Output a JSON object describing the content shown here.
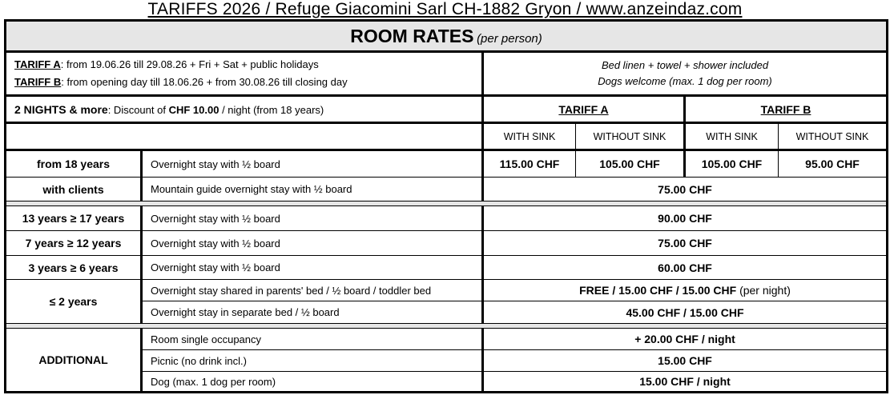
{
  "title": "TARIFFS 2026 / Refuge Giacomini Sarl CH-1882 Gryon / www.anzeindaz.com",
  "header": {
    "main": "ROOM RATES",
    "note": "(per person)"
  },
  "tariffs": {
    "a_label": "TARIFF A",
    "a_text": ": from 19.06.26 till 29.08.26 + Fri + Sat + public holidays",
    "b_label": "TARIFF B",
    "b_text": ": from opening day till 18.06.26 + from 30.08.26 till closing day",
    "info1": "Bed linen + towel + shower included",
    "info2": "Dogs welcome (max. 1 dog per room)"
  },
  "discount": {
    "bold": "2 NIGHTS & more",
    "text1": ": Discount of ",
    "amount": "CHF 10.00",
    "text2": " / night (from 18 years)"
  },
  "columns": {
    "tariff_a": "TARIFF A",
    "tariff_b": "TARIFF B",
    "with_sink": "WITH SINK",
    "without_sink": "WITHOUT SINK"
  },
  "rows": {
    "adult": {
      "label": "from 18 years",
      "desc": "Overnight stay with ½ board",
      "a_with": "115.00 CHF",
      "a_without": "105.00 CHF",
      "b_with": "105.00 CHF",
      "b_without": "95.00 CHF"
    },
    "guide": {
      "label": "with clients",
      "desc": "Mountain guide overnight stay with ½ board",
      "price": "75.00 CHF"
    },
    "teen": {
      "label": "13 years ≥ 17 years",
      "desc": "Overnight stay with ½ board",
      "price": "90.00 CHF"
    },
    "child": {
      "label": "7 years ≥ 12 years",
      "desc": "Overnight stay with ½ board",
      "price": "75.00 CHF"
    },
    "small": {
      "label": "3 years ≥ 6 years",
      "desc": "Overnight stay with ½ board",
      "price": "60.00 CHF"
    },
    "toddler": {
      "label": "≤ 2 years",
      "desc1": "Overnight stay shared in parents' bed / ½ board / toddler bed",
      "price1": "FREE / 15.00 CHF / 15.00 CHF",
      "price1_note": " (per night)",
      "desc2": "Overnight stay in separate bed / ½ board",
      "price2": "45.00 CHF / 15.00 CHF"
    },
    "additional": {
      "label": "ADDITIONAL",
      "items": [
        {
          "desc": "Room single occupancy",
          "price": "+ 20.00 CHF / night"
        },
        {
          "desc": "Picnic (no drink incl.)",
          "price": "15.00 CHF"
        },
        {
          "desc": "Dog (max. 1 dog per room)",
          "price": "15.00 CHF / night"
        }
      ]
    }
  }
}
